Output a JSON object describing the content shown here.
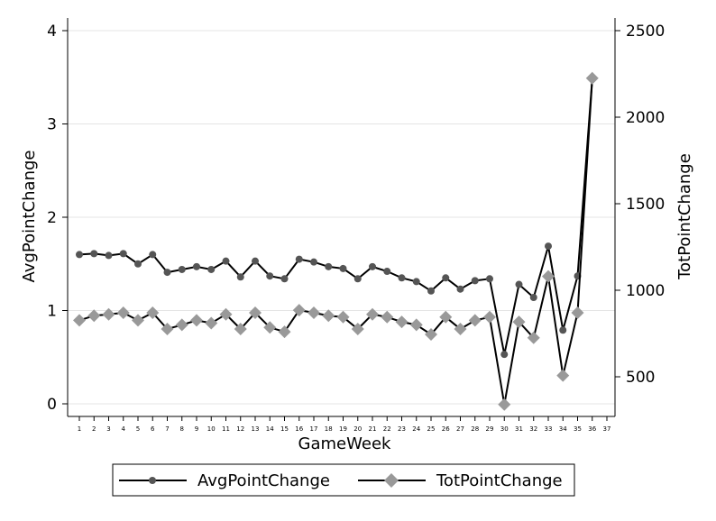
{
  "chart_data": {
    "type": "line",
    "xlabel": "GameWeek",
    "ylabel_left": "AvgPointChange",
    "ylabel_right": "TotPointChange",
    "x_ticks": [
      "1",
      "2",
      "3",
      "4",
      "5",
      "6",
      "7",
      "8",
      "9",
      "10",
      "11",
      "12",
      "13",
      "14",
      "15",
      "16",
      "17",
      "18",
      "19",
      "20",
      "21",
      "22",
      "23",
      "24",
      "25",
      "26",
      "27",
      "28",
      "29",
      "30",
      "31",
      "32",
      "33",
      "34",
      "35",
      "36",
      "37"
    ],
    "x_range": [
      1,
      37
    ],
    "y_left_ticks": [
      "0",
      "1",
      "2",
      "3",
      "4"
    ],
    "y_left_range": [
      -0.05,
      4.1
    ],
    "y_right_ticks": [
      "500",
      "1000",
      "1500",
      "2000",
      "2500"
    ],
    "y_right_range": [
      320,
      2560
    ],
    "grid": true,
    "legend_position": "bottom",
    "series": [
      {
        "name": "AvgPointChange",
        "axis": "left",
        "marker": "circle",
        "line_color": "#000000",
        "marker_color": "#555555",
        "x": [
          1,
          2,
          3,
          4,
          5,
          6,
          7,
          8,
          9,
          10,
          11,
          12,
          13,
          14,
          15,
          16,
          17,
          18,
          19,
          20,
          21,
          22,
          23,
          24,
          25,
          26,
          27,
          28,
          29,
          30,
          31,
          32,
          33,
          34,
          35,
          36
        ],
        "values": [
          1.6,
          1.61,
          1.59,
          1.61,
          1.5,
          1.6,
          1.41,
          1.44,
          1.47,
          1.44,
          1.53,
          1.36,
          1.53,
          1.37,
          1.34,
          1.55,
          1.52,
          1.47,
          1.45,
          1.34,
          1.47,
          1.42,
          1.35,
          1.31,
          1.21,
          1.35,
          1.23,
          1.32,
          1.34,
          0.53,
          1.28,
          1.14,
          1.69,
          0.79,
          1.37,
          3.49
        ]
      },
      {
        "name": "TotPointChange",
        "axis": "right",
        "marker": "diamond",
        "line_color": "#000000",
        "marker_color": "#999999",
        "x": [
          1,
          2,
          3,
          4,
          5,
          6,
          7,
          8,
          9,
          10,
          11,
          12,
          13,
          14,
          15,
          16,
          17,
          18,
          19,
          20,
          21,
          22,
          23,
          24,
          25,
          26,
          27,
          28,
          29,
          30,
          31,
          32,
          33,
          34,
          35,
          36
        ],
        "values": [
          826,
          853,
          861,
          870,
          826,
          870,
          776,
          800,
          826,
          810,
          861,
          776,
          870,
          785,
          760,
          885,
          870,
          853,
          845,
          776,
          861,
          845,
          817,
          800,
          745,
          845,
          776,
          826,
          845,
          340,
          817,
          725,
          1080,
          507,
          870,
          2225
        ]
      }
    ]
  }
}
